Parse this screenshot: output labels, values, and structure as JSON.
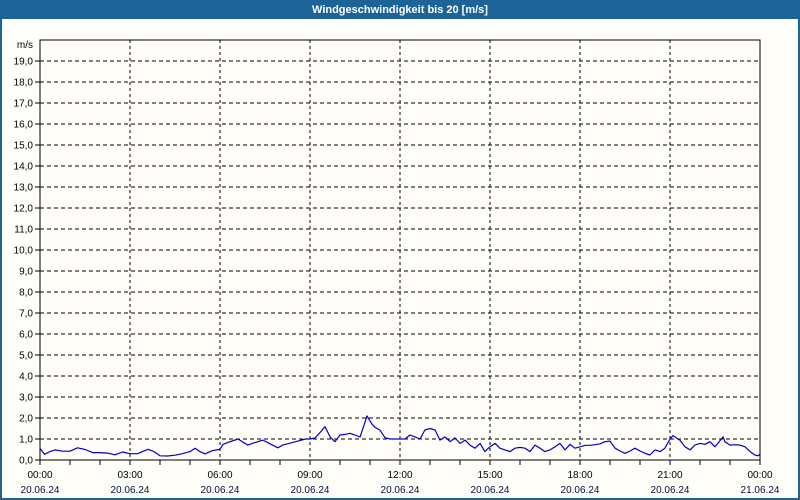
{
  "window": {
    "title": "Windgeschwindigkeit bis 20 [m/s]"
  },
  "colors": {
    "titlebar": "#1C6397",
    "frame_border": "#1C6397",
    "title_text": "#FFFFFF",
    "background": "#FFFEF8",
    "grid": "#000000",
    "axis": "#000000",
    "tick_label": "#000000",
    "date_label": "#001139",
    "line": "#0000C8"
  },
  "chart_data": {
    "type": "line",
    "title": "Windgeschwindigkeit bis 20 [m/s]",
    "ylabel": "m/s",
    "unit_label": "m/s",
    "ylim": [
      0,
      20
    ],
    "xlim_hours": [
      0,
      24
    ],
    "grid": "dashed",
    "legend": "none",
    "y_tick_step": 1.0,
    "y_tick_labels": [
      "0,0",
      "1,0",
      "2,0",
      "3,0",
      "4,0",
      "5,0",
      "6,0",
      "7,0",
      "8,0",
      "9,0",
      "10,0",
      "11,0",
      "12,0",
      "13,0",
      "14,0",
      "15,0",
      "16,0",
      "17,0",
      "18,0",
      "19,0"
    ],
    "x_minor_tick_every_hours": 1,
    "x_major_ticks": [
      {
        "hour": 0,
        "time": "00:00",
        "date": "20.06.24"
      },
      {
        "hour": 3,
        "time": "03:00",
        "date": "20.06.24"
      },
      {
        "hour": 6,
        "time": "06:00",
        "date": "20.06.24"
      },
      {
        "hour": 9,
        "time": "09:00",
        "date": "20.06.24"
      },
      {
        "hour": 12,
        "time": "12:00",
        "date": "20.06.24"
      },
      {
        "hour": 15,
        "time": "15:00",
        "date": "20.06.24"
      },
      {
        "hour": 18,
        "time": "18:00",
        "date": "20.06.24"
      },
      {
        "hour": 21,
        "time": "21:00",
        "date": "20.06.24"
      },
      {
        "hour": 24,
        "time": "00:00",
        "date": "21.06.24"
      }
    ],
    "series": [
      {
        "name": "Windgeschwindigkeit",
        "unit": "m/s",
        "color": "#0000C8",
        "points_hour_value": [
          [
            0,
            0.55
          ],
          [
            0.15,
            0.27
          ],
          [
            0.33,
            0.4
          ],
          [
            0.5,
            0.48
          ],
          [
            0.75,
            0.42
          ],
          [
            1,
            0.42
          ],
          [
            1.25,
            0.58
          ],
          [
            1.5,
            0.5
          ],
          [
            1.75,
            0.35
          ],
          [
            2,
            0.35
          ],
          [
            2.25,
            0.33
          ],
          [
            2.5,
            0.25
          ],
          [
            2.75,
            0.38
          ],
          [
            3,
            0.3
          ],
          [
            3.25,
            0.3
          ],
          [
            3.6,
            0.51
          ],
          [
            3.8,
            0.4
          ],
          [
            4,
            0.2
          ],
          [
            4.25,
            0.19
          ],
          [
            4.5,
            0.23
          ],
          [
            4.75,
            0.3
          ],
          [
            5,
            0.4
          ],
          [
            5.17,
            0.56
          ],
          [
            5.33,
            0.4
          ],
          [
            5.5,
            0.29
          ],
          [
            5.75,
            0.45
          ],
          [
            6,
            0.51
          ],
          [
            6.1,
            0.75
          ],
          [
            6.3,
            0.85
          ],
          [
            6.6,
            1.0
          ],
          [
            6.93,
            0.71
          ],
          [
            7.1,
            0.8
          ],
          [
            7.43,
            0.95
          ],
          [
            7.7,
            0.75
          ],
          [
            7.93,
            0.58
          ],
          [
            8.1,
            0.72
          ],
          [
            8.3,
            0.79
          ],
          [
            8.6,
            0.9
          ],
          [
            8.85,
            1.0
          ],
          [
            9,
            1.0
          ],
          [
            9.17,
            1.05
          ],
          [
            9.33,
            1.3
          ],
          [
            9.5,
            1.59
          ],
          [
            9.67,
            1.1
          ],
          [
            9.83,
            0.87
          ],
          [
            10,
            1.19
          ],
          [
            10.17,
            1.22
          ],
          [
            10.33,
            1.27
          ],
          [
            10.5,
            1.19
          ],
          [
            10.67,
            1.1
          ],
          [
            10.9,
            2.1
          ],
          [
            11.07,
            1.7
          ],
          [
            11.17,
            1.55
          ],
          [
            11.33,
            1.43
          ],
          [
            11.5,
            1.06
          ],
          [
            11.67,
            1.0
          ],
          [
            11.83,
            1.0
          ],
          [
            12,
            1.0
          ],
          [
            12.17,
            1.0
          ],
          [
            12.33,
            1.19
          ],
          [
            12.5,
            1.1
          ],
          [
            12.67,
            1.0
          ],
          [
            12.83,
            1.43
          ],
          [
            13,
            1.5
          ],
          [
            13.17,
            1.43
          ],
          [
            13.33,
            0.95
          ],
          [
            13.5,
            1.1
          ],
          [
            13.67,
            0.87
          ],
          [
            13.83,
            1.05
          ],
          [
            14,
            0.79
          ],
          [
            14.17,
            0.95
          ],
          [
            14.33,
            0.71
          ],
          [
            14.5,
            0.56
          ],
          [
            14.67,
            0.79
          ],
          [
            14.83,
            0.4
          ],
          [
            15,
            0.63
          ],
          [
            15.17,
            0.79
          ],
          [
            15.33,
            0.56
          ],
          [
            15.5,
            0.48
          ],
          [
            15.67,
            0.4
          ],
          [
            15.83,
            0.56
          ],
          [
            16,
            0.6
          ],
          [
            16.17,
            0.56
          ],
          [
            16.33,
            0.4
          ],
          [
            16.5,
            0.71
          ],
          [
            16.67,
            0.56
          ],
          [
            16.83,
            0.4
          ],
          [
            17,
            0.48
          ],
          [
            17.17,
            0.63
          ],
          [
            17.33,
            0.79
          ],
          [
            17.5,
            0.48
          ],
          [
            17.67,
            0.75
          ],
          [
            17.83,
            0.56
          ],
          [
            18,
            0.63
          ],
          [
            18.17,
            0.7
          ],
          [
            18.33,
            0.7
          ],
          [
            18.5,
            0.73
          ],
          [
            18.67,
            0.77
          ],
          [
            18.83,
            0.87
          ],
          [
            19,
            0.9
          ],
          [
            19.17,
            0.56
          ],
          [
            19.33,
            0.43
          ],
          [
            19.5,
            0.32
          ],
          [
            19.67,
            0.43
          ],
          [
            19.83,
            0.56
          ],
          [
            20,
            0.43
          ],
          [
            20.17,
            0.32
          ],
          [
            20.33,
            0.24
          ],
          [
            20.5,
            0.48
          ],
          [
            20.67,
            0.4
          ],
          [
            20.83,
            0.56
          ],
          [
            21,
            1.0
          ],
          [
            21.1,
            1.16
          ],
          [
            21.33,
            0.95
          ],
          [
            21.5,
            0.63
          ],
          [
            21.67,
            0.48
          ],
          [
            21.83,
            0.71
          ],
          [
            22,
            0.79
          ],
          [
            22.17,
            0.75
          ],
          [
            22.33,
            0.87
          ],
          [
            22.5,
            0.63
          ],
          [
            22.77,
            1.1
          ],
          [
            22.83,
            0.87
          ],
          [
            23,
            0.71
          ],
          [
            23.17,
            0.73
          ],
          [
            23.33,
            0.71
          ],
          [
            23.5,
            0.63
          ],
          [
            23.67,
            0.4
          ],
          [
            23.83,
            0.24
          ],
          [
            23.93,
            0.2
          ],
          [
            24,
            0.27
          ]
        ]
      }
    ]
  }
}
